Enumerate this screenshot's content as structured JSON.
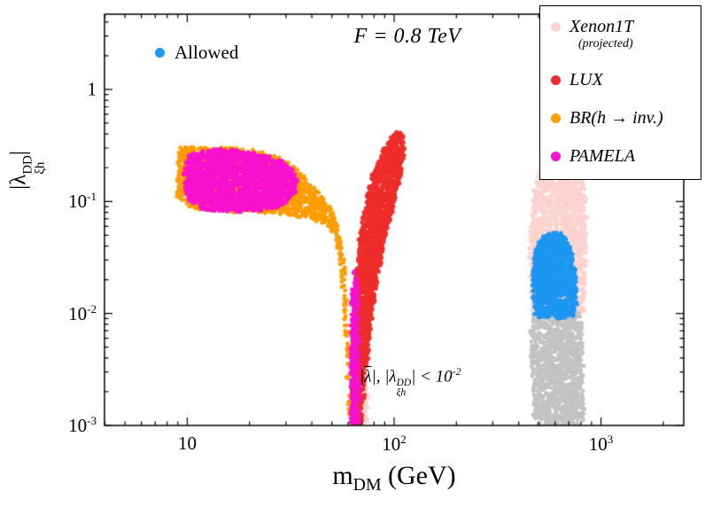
{
  "chart_data": {
    "type": "scatter",
    "title": "F = 0.8 TeV",
    "x_scale": "log",
    "y_scale": "log",
    "xlim": [
      3.98,
      2512
    ],
    "ylim": [
      0.001,
      4.7
    ],
    "xlabel": "m_DM (GeV)",
    "ylabel": "|lambda_xi-h^DD|",
    "x_ticks": [
      {
        "value": 10,
        "base": "10",
        "exp": ""
      },
      {
        "value": 100,
        "base": "10",
        "exp": "2"
      },
      {
        "value": 1000,
        "base": "10",
        "exp": "3"
      }
    ],
    "y_ticks": [
      {
        "value": 1,
        "base": "1",
        "exp": ""
      },
      {
        "value": 0.1,
        "base": "10",
        "exp": "-1"
      },
      {
        "value": 0.01,
        "base": "10",
        "exp": "-2"
      },
      {
        "value": 0.001,
        "base": "10",
        "exp": "-3"
      }
    ],
    "allowed": {
      "label": "Allowed",
      "color": "#1d97f2"
    },
    "legend": [
      {
        "label": "Xenon1T",
        "sublabel": "(projected)",
        "color": "#fcd3cf"
      },
      {
        "label": "LUX",
        "color": "#ee2d2a"
      },
      {
        "label": "BR(h → inv.)",
        "color": "#ff9c00"
      },
      {
        "label": "PAMELA",
        "color": "#f712cf"
      }
    ],
    "series": [
      {
        "name": "Xenon1T (projected)",
        "color": "#fcd3cf",
        "regions": [
          {
            "n": 260,
            "r": 2.3,
            "polygon": [
              [
                61,
                0.001
              ],
              [
                61.5,
                0.0035
              ],
              [
                63,
                0.006
              ],
              [
                66,
                0.0078
              ],
              [
                69,
                0.0066
              ],
              [
                72,
                0.004
              ],
              [
                74,
                0.002
              ],
              [
                74.5,
                0.001
              ]
            ]
          },
          {
            "n": 1750,
            "r": 2.4,
            "polygon": [
              [
                470,
                0.0095
              ],
              [
                458,
                0.016
              ],
              [
                452,
                0.03
              ],
              [
                455,
                0.06
              ],
              [
                468,
                0.105
              ],
              [
                490,
                0.16
              ],
              [
                525,
                0.225
              ],
              [
                570,
                0.29
              ],
              [
                620,
                0.335
              ],
              [
                670,
                0.35
              ],
              [
                720,
                0.33
              ],
              [
                765,
                0.285
              ],
              [
                800,
                0.23
              ],
              [
                825,
                0.17
              ],
              [
                840,
                0.115
              ],
              [
                848,
                0.065
              ],
              [
                845,
                0.03
              ],
              [
                835,
                0.014
              ],
              [
                820,
                0.0095
              ],
              [
                700,
                0.009
              ],
              [
                560,
                0.009
              ]
            ]
          }
        ]
      },
      {
        "name": "lambda below 1e-2 (gray)",
        "color": "#c3c3c3",
        "regions": [
          {
            "n": 1250,
            "r": 2.4,
            "polygon": [
              [
                478,
                0.001
              ],
              [
                467,
                0.0025
              ],
              [
                460,
                0.005
              ],
              [
                458,
                0.008
              ],
              [
                470,
                0.01
              ],
              [
                520,
                0.0104
              ],
              [
                580,
                0.0106
              ],
              [
                650,
                0.0105
              ],
              [
                720,
                0.0102
              ],
              [
                780,
                0.0099
              ],
              [
                805,
                0.008
              ],
              [
                818,
                0.005
              ],
              [
                824,
                0.0025
              ],
              [
                826,
                0.001
              ]
            ]
          }
        ]
      },
      {
        "name": "BR(h → inv.)",
        "color": "#ff9c00",
        "regions": [
          {
            "n": 1700,
            "r": 2.4,
            "polygon": [
              [
                9,
                0.295
              ],
              [
                12,
                0.31
              ],
              [
                17,
                0.3
              ],
              [
                23,
                0.27
              ],
              [
                28,
                0.245
              ],
              [
                33,
                0.2
              ],
              [
                38,
                0.155
              ],
              [
                43,
                0.12
              ],
              [
                47,
                0.1
              ],
              [
                50,
                0.085
              ],
              [
                53,
                0.062
              ],
              [
                55,
                0.045
              ],
              [
                56.5,
                0.032
              ],
              [
                58,
                0.019
              ],
              [
                59,
                0.011
              ],
              [
                60,
                0.0055
              ],
              [
                60.8,
                0.0022
              ],
              [
                61.3,
                0.001
              ],
              [
                60.2,
                0.001
              ],
              [
                59.3,
                0.0028
              ],
              [
                58.4,
                0.006
              ],
              [
                57.3,
                0.011
              ],
              [
                56,
                0.02
              ],
              [
                54.5,
                0.033
              ],
              [
                52.5,
                0.046
              ],
              [
                50,
                0.056
              ],
              [
                46,
                0.063
              ],
              [
                41,
                0.069
              ],
              [
                35,
                0.073
              ],
              [
                29,
                0.077
              ],
              [
                22,
                0.08
              ],
              [
                15,
                0.082
              ],
              [
                10.5,
                0.086
              ],
              [
                9,
                0.11
              ]
            ]
          }
        ]
      },
      {
        "name": "LUX",
        "color": "#ee2d2a",
        "regions": [
          {
            "n": 2200,
            "r": 2.4,
            "polygon": [
              [
                62.5,
                0.001
              ],
              [
                63,
                0.003
              ],
              [
                63.8,
                0.0075
              ],
              [
                65,
                0.015
              ],
              [
                66.5,
                0.027
              ],
              [
                68.5,
                0.047
              ],
              [
                71,
                0.075
              ],
              [
                74,
                0.112
              ],
              [
                78,
                0.16
              ],
              [
                83,
                0.22
              ],
              [
                89,
                0.29
              ],
              [
                95,
                0.355
              ],
              [
                101,
                0.41
              ],
              [
                106,
                0.425
              ],
              [
                110,
                0.38
              ],
              [
                111,
                0.3
              ],
              [
                109,
                0.21
              ],
              [
                105,
                0.145
              ],
              [
                100,
                0.1
              ],
              [
                95,
                0.068
              ],
              [
                90,
                0.044
              ],
              [
                85,
                0.026
              ],
              [
                81,
                0.015
              ],
              [
                77,
                0.0075
              ],
              [
                73.5,
                0.0035
              ],
              [
                70.5,
                0.0016
              ],
              [
                69,
                0.001
              ]
            ]
          },
          {
            "n": 700,
            "r": 2.5,
            "polygon": [
              [
                615,
                0.32
              ],
              [
                606,
                0.42
              ],
              [
                605,
                0.56
              ],
              [
                615,
                0.74
              ],
              [
                635,
                0.95
              ],
              [
                660,
                1.13
              ],
              [
                695,
                1.27
              ],
              [
                730,
                1.32
              ],
              [
                765,
                1.22
              ],
              [
                790,
                1.02
              ],
              [
                800,
                0.8
              ],
              [
                798,
                0.6
              ],
              [
                785,
                0.45
              ],
              [
                765,
                0.36
              ],
              [
                735,
                0.315
              ],
              [
                680,
                0.3
              ],
              [
                640,
                0.3
              ]
            ]
          },
          {
            "n": 60,
            "r": 2.5,
            "polygon": [
              [
                560,
                0.28
              ],
              [
                545,
                0.45
              ],
              [
                560,
                0.75
              ],
              [
                600,
                1.1
              ],
              [
                650,
                1.45
              ],
              [
                720,
                1.55
              ],
              [
                780,
                1.35
              ],
              [
                820,
                0.95
              ],
              [
                830,
                0.55
              ],
              [
                800,
                0.33
              ],
              [
                700,
                0.26
              ],
              [
                620,
                0.25
              ]
            ]
          }
        ]
      },
      {
        "name": "Allowed",
        "color": "#1d97f2",
        "regions": [
          {
            "n": 1100,
            "r": 2.4,
            "polygon": [
              [
                485,
                0.0095
              ],
              [
                472,
                0.014
              ],
              [
                468,
                0.022
              ],
              [
                474,
                0.032
              ],
              [
                492,
                0.041
              ],
              [
                520,
                0.048
              ],
              [
                555,
                0.052
              ],
              [
                595,
                0.054
              ],
              [
                635,
                0.052
              ],
              [
                672,
                0.047
              ],
              [
                705,
                0.04
              ],
              [
                735,
                0.031
              ],
              [
                755,
                0.023
              ],
              [
                763,
                0.016
              ],
              [
                758,
                0.011
              ],
              [
                740,
                0.0095
              ],
              [
                650,
                0.0092
              ],
              [
                550,
                0.0092
              ]
            ]
          }
        ]
      },
      {
        "name": "PAMELA",
        "color": "#f712cf",
        "regions": [
          {
            "n": 1950,
            "r": 2.4,
            "polygon": [
              [
                9.8,
                0.22
              ],
              [
                10.5,
                0.27
              ],
              [
                13,
                0.29
              ],
              [
                17,
                0.285
              ],
              [
                21,
                0.27
              ],
              [
                25,
                0.25
              ],
              [
                29,
                0.225
              ],
              [
                32,
                0.195
              ],
              [
                34,
                0.16
              ],
              [
                33.5,
                0.125
              ],
              [
                31,
                0.102
              ],
              [
                27,
                0.088
              ],
              [
                22,
                0.082
              ],
              [
                16,
                0.081
              ],
              [
                12,
                0.085
              ],
              [
                10.2,
                0.1
              ],
              [
                9.6,
                0.14
              ]
            ]
          },
          {
            "n": 400,
            "r": 2.2,
            "polygon": [
              [
                62.2,
                0.001
              ],
              [
                61.8,
                0.003
              ],
              [
                62.0,
                0.0075
              ],
              [
                62.6,
                0.014
              ],
              [
                63.5,
                0.021
              ],
              [
                64.8,
                0.0245
              ],
              [
                66,
                0.021
              ],
              [
                66.8,
                0.013
              ],
              [
                67.1,
                0.006
              ],
              [
                67.3,
                0.002
              ],
              [
                67.3,
                0.001
              ]
            ]
          }
        ]
      }
    ]
  },
  "axes": {
    "x_title": {
      "pre": "m",
      "sub": "DM",
      "post": " (GeV)"
    },
    "y_title": {
      "open": "|λ",
      "sup": "DD",
      "sub": "ξh",
      "close": "|"
    }
  },
  "annotation": {
    "p1": "|",
    "lambda_bar": "λ",
    "p2": "|, |λ",
    "sup": "DD",
    "sub": "ξh",
    "p3": "| < 10",
    "exp": "-2"
  }
}
